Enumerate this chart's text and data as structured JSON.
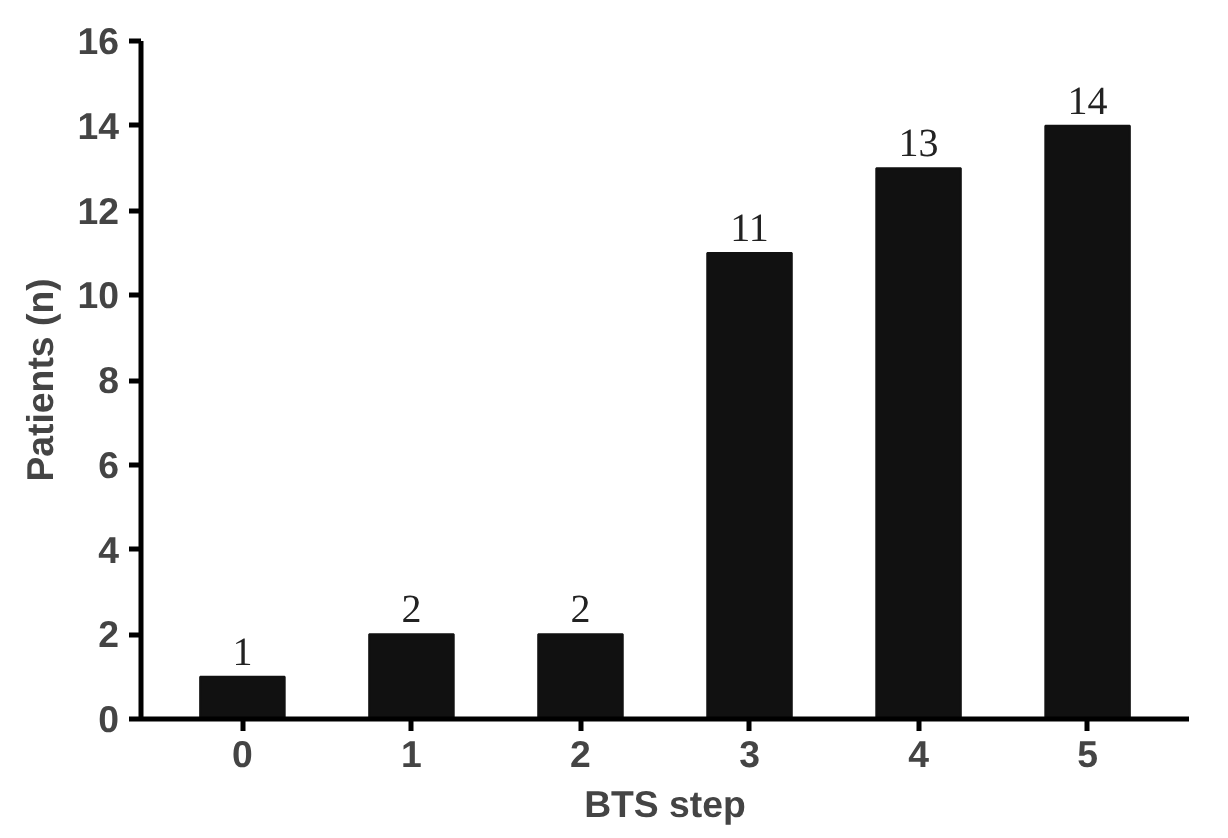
{
  "chart_data": {
    "type": "bar",
    "xlabel": "BTS step",
    "ylabel": "Patients (n)",
    "categories": [
      "0",
      "1",
      "2",
      "3",
      "4",
      "5"
    ],
    "values": [
      1,
      2,
      2,
      11,
      13,
      14
    ],
    "color": "#111111",
    "ylim": [
      0,
      16
    ],
    "yticks": [
      0,
      2,
      4,
      6,
      8,
      10,
      12,
      14,
      16
    ],
    "grid": false,
    "data_labels": true
  }
}
